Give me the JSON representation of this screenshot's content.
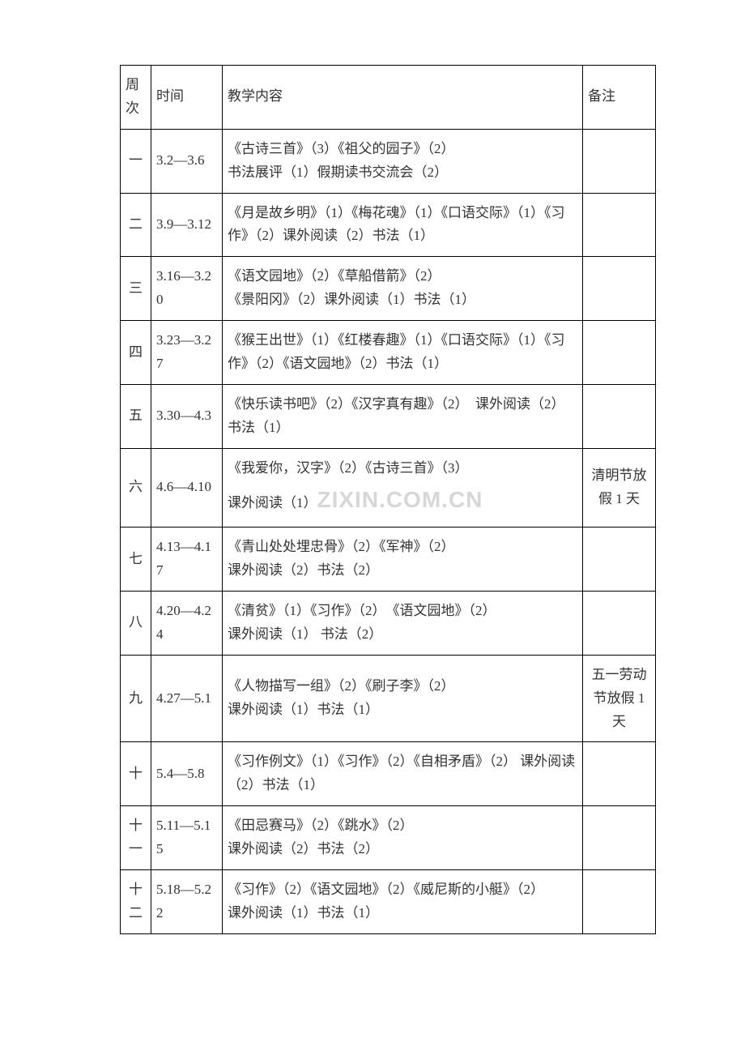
{
  "header": {
    "week": "周次",
    "time": "时间",
    "content": "教学内容",
    "note": "备注"
  },
  "rows": [
    {
      "week": "一",
      "time": "3.2—3.6",
      "content_line1": "《古诗三首》（3）《祖父的园子》（2）",
      "content_line2": "书法展评（1）假期读书交流会（2）",
      "note": ""
    },
    {
      "week": "二",
      "time": "3.9—3.12",
      "content": "《月是故乡明》（1）《梅花魂》（1）《口语交际》（1）《习作》（2）课外阅读（2）书法（1）",
      "note": ""
    },
    {
      "week": "三",
      "time": "3.16—3.20",
      "content_line1": "《语文园地》（2）《草船借箭》（2）",
      "content_line2": "《景阳冈》（2）课外阅读（1）书法（1）",
      "note": ""
    },
    {
      "week": "四",
      "time": "3.23—3.27",
      "content": "《猴王出世》（1）《红楼春趣》（1）《口语交际》（1）《习作》（2）《语文园地》（2）书法（1）",
      "note": ""
    },
    {
      "week": "五",
      "time": "3.30—4.3",
      "content": "《快乐读书吧》（2）《汉字真有趣》（2）　课外阅读（2）书法（1）",
      "note": ""
    },
    {
      "week": "六",
      "time": "4.6—4.10",
      "content_line1": "《我爱你，汉字》（2）《古诗三首》（3）",
      "content_line2_prefix": "课外阅读（1）",
      "watermark": "ZIXIN.COM.CN",
      "note": "清明节放假 1 天"
    },
    {
      "week": "七",
      "time": "4.13—4.17",
      "content_line1": "《青山处处埋忠骨》（2）《军神》（2）",
      "content_line2": "课外阅读（2）书法（2）",
      "note": ""
    },
    {
      "week": "八",
      "time": "4.20—4.24",
      "content_line1": "《清贫》（1）《习作》（2）　《语文园地》（2）",
      "content_line2": "课外阅读（1）  书法（2）",
      "note": ""
    },
    {
      "week": "九",
      "time": "4.27—5.1",
      "content_line1": "《人物描写一组》（2）《刷子李》（2）",
      "content_line2": "课外阅读（1）书法（1）",
      "note": "五一劳动节放假 1 天"
    },
    {
      "week": "十",
      "time": "5.4—5.8",
      "content": "《习作例文》（1）《习作》（2）《自相矛盾》（2）  课外阅读（2）书法（1）",
      "note": ""
    },
    {
      "week": "十一",
      "time": "5.11—5.15",
      "content_line1": "《田忌赛马》（2）《跳水》（2）",
      "content_line2": "课外阅读（2）书法（2）",
      "note": ""
    },
    {
      "week": "十二",
      "time": "5.18—5.22",
      "content_line1": "《习作》（2）《语文园地》（2）《威尼斯的小艇》（2）",
      "content_line2": "课外阅读（1）书法（1）",
      "note": ""
    }
  ]
}
